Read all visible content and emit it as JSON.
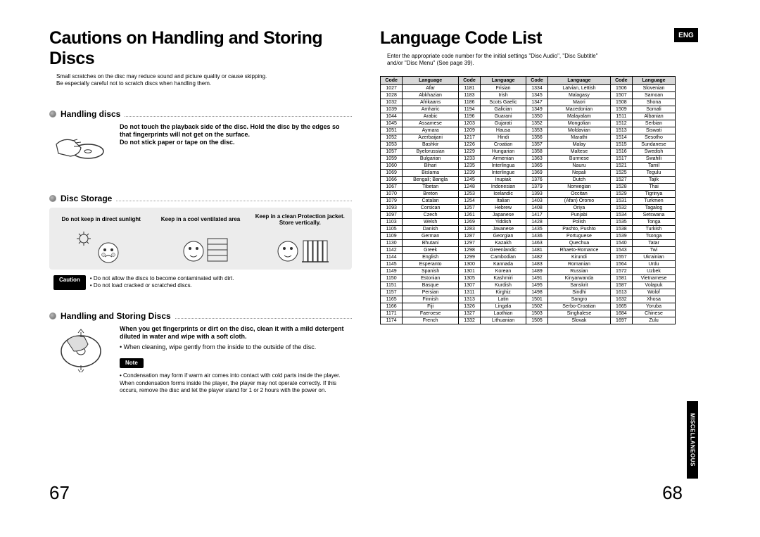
{
  "left": {
    "title": "Cautions on Handling and Storing Discs",
    "subtitle_l1": "Small scratches on the disc may reduce sound and picture quality or cause skipping.",
    "subtitle_l2": "Be especially careful not to scratch discs when handling them.",
    "s1": {
      "title": "Handling discs",
      "b1": "Do not touch the playback side of the disc. Hold the disc by the edges so that fingerprints will not get on the surface.",
      "b2": "Do not stick paper or tape on the disc."
    },
    "s2": {
      "title": "Disc Storage",
      "cells": [
        "Do not keep in direct sunlight",
        "Keep in a cool ventilated area",
        "Keep in a clean Protection jacket. Store vertically."
      ],
      "caution_label": "Caution",
      "caution_1": "Do not allow the discs to become contaminated with dirt.",
      "caution_2": "Do not load cracked or scratched discs."
    },
    "s3": {
      "title": "Handling and Storing Discs",
      "b1": "When you get fingerprints or dirt on the disc, clean it with a mild detergent diluted in water and wipe with a soft cloth.",
      "b2": "When cleaning, wipe gently from the inside to the outside of the disc.",
      "note_label": "Note",
      "note_1": "Condensation may form if warm air comes into contact with cold parts inside the player. When condensation forms inside the player, the player may not operate correctly. If this occurs, remove the disc and let the player stand for 1 or 2 hours with the power on."
    },
    "pagenum": "67"
  },
  "right": {
    "title": "Language Code List",
    "subtitle_l1": "Enter the appropriate code number for the initial settings \"Disc Audio\", \"Disc Subtitle\"",
    "subtitle_l2": "and/or \"Disc Menu\" (See page 39).",
    "eng": "ENG",
    "sidetab": "MISCELLANEOUS",
    "pagenum": "68",
    "headers": [
      "Code",
      "Language",
      "Code",
      "Language",
      "Code",
      "Language",
      "Code",
      "Language"
    ],
    "rows": [
      [
        "1027",
        "Afar",
        "1181",
        "Frisian",
        "1334",
        "Latvian, Lettish",
        "1506",
        "Slovenian"
      ],
      [
        "1028",
        "Abkhazian",
        "1183",
        "Irish",
        "1345",
        "Malagasy",
        "1507",
        "Samoan"
      ],
      [
        "1032",
        "Afrikaans",
        "1186",
        "Scots Gaelic",
        "1347",
        "Maori",
        "1508",
        "Shona"
      ],
      [
        "1039",
        "Amharic",
        "1194",
        "Galician",
        "1349",
        "Macedonian",
        "1509",
        "Somali"
      ],
      [
        "1044",
        "Arabic",
        "1196",
        "Guarani",
        "1350",
        "Malayalam",
        "1511",
        "Albanian"
      ],
      [
        "1045",
        "Assamese",
        "1203",
        "Gujarati",
        "1352",
        "Mongolian",
        "1512",
        "Serbian"
      ],
      [
        "1051",
        "Aymara",
        "1209",
        "Hausa",
        "1353",
        "Moldavian",
        "1513",
        "Siswati"
      ],
      [
        "1052",
        "Azerbaijani",
        "1217",
        "Hindi",
        "1356",
        "Marathi",
        "1514",
        "Sesotho"
      ],
      [
        "1053",
        "Bashkir",
        "1226",
        "Croatian",
        "1357",
        "Malay",
        "1515",
        "Sundanese"
      ],
      [
        "1057",
        "Byelorussian",
        "1229",
        "Hungarian",
        "1358",
        "Maltese",
        "1516",
        "Swedish"
      ],
      [
        "1059",
        "Bulgarian",
        "1233",
        "Armenian",
        "1363",
        "Burmese",
        "1517",
        "Swahili"
      ],
      [
        "1060",
        "Bihari",
        "1235",
        "Interlingua",
        "1365",
        "Nauru",
        "1521",
        "Tamil"
      ],
      [
        "1069",
        "Bislama",
        "1239",
        "Interlingue",
        "1369",
        "Nepali",
        "1525",
        "Tegulu"
      ],
      [
        "1066",
        "Bengali; Bangla",
        "1245",
        "Inupiak",
        "1376",
        "Dutch",
        "1527",
        "Tajik"
      ],
      [
        "1067",
        "Tibetan",
        "1248",
        "Indonesian",
        "1379",
        "Norwegian",
        "1528",
        "Thai"
      ],
      [
        "1070",
        "Breton",
        "1253",
        "Icelandic",
        "1393",
        "Occitan",
        "1529",
        "Tigrinya"
      ],
      [
        "1079",
        "Catalan",
        "1254",
        "Italian",
        "1403",
        "(Afan) Oromo",
        "1531",
        "Turkmen"
      ],
      [
        "1093",
        "Corsican",
        "1257",
        "Hebrew",
        "1408",
        "Oriya",
        "1532",
        "Tagalog"
      ],
      [
        "1097",
        "Czech",
        "1261",
        "Japanese",
        "1417",
        "Punjabi",
        "1534",
        "Setswana"
      ],
      [
        "1103",
        "Welsh",
        "1269",
        "Yiddish",
        "1428",
        "Polish",
        "1535",
        "Tonga"
      ],
      [
        "1105",
        "Danish",
        "1283",
        "Javanese",
        "1435",
        "Pashto, Pushto",
        "1538",
        "Turkish"
      ],
      [
        "1109",
        "German",
        "1287",
        "Georgian",
        "1436",
        "Portuguese",
        "1539",
        "Tsonga"
      ],
      [
        "1130",
        "Bhutani",
        "1297",
        "Kazakh",
        "1463",
        "Quechua",
        "1540",
        "Tatar"
      ],
      [
        "1142",
        "Greek",
        "1298",
        "Greenlandic",
        "1481",
        "Rhaeto-Romance",
        "1543",
        "Twi"
      ],
      [
        "1144",
        "English",
        "1299",
        "Cambodian",
        "1482",
        "Kirundi",
        "1557",
        "Ukrainian"
      ],
      [
        "1145",
        "Esperanto",
        "1300",
        "Kannada",
        "1483",
        "Romanian",
        "1564",
        "Urdu"
      ],
      [
        "1149",
        "Spanish",
        "1301",
        "Korean",
        "1489",
        "Russian",
        "1572",
        "Uzbek"
      ],
      [
        "1150",
        "Estonian",
        "1305",
        "Kashmiri",
        "1491",
        "Kinyarwanda",
        "1581",
        "Vietnamese"
      ],
      [
        "1151",
        "Basque",
        "1307",
        "Kurdish",
        "1495",
        "Sanskrit",
        "1587",
        "Volapuk"
      ],
      [
        "1157",
        "Persian",
        "1311",
        "Kirghiz",
        "1498",
        "Sindhi",
        "1613",
        "Wolof"
      ],
      [
        "1165",
        "Finnish",
        "1313",
        "Latin",
        "1501",
        "Sangro",
        "1632",
        "Xhosa"
      ],
      [
        "1166",
        "Fiji",
        "1326",
        "Lingala",
        "1502",
        "Serbo-Croatian",
        "1665",
        "Yoruba"
      ],
      [
        "1171",
        "Faeroese",
        "1327",
        "Laothian",
        "1503",
        "Singhalese",
        "1684",
        "Chinese"
      ],
      [
        "1174",
        "French",
        "1332",
        "Lithuanian",
        "1505",
        "Slovak",
        "1697",
        "Zulu"
      ]
    ]
  }
}
